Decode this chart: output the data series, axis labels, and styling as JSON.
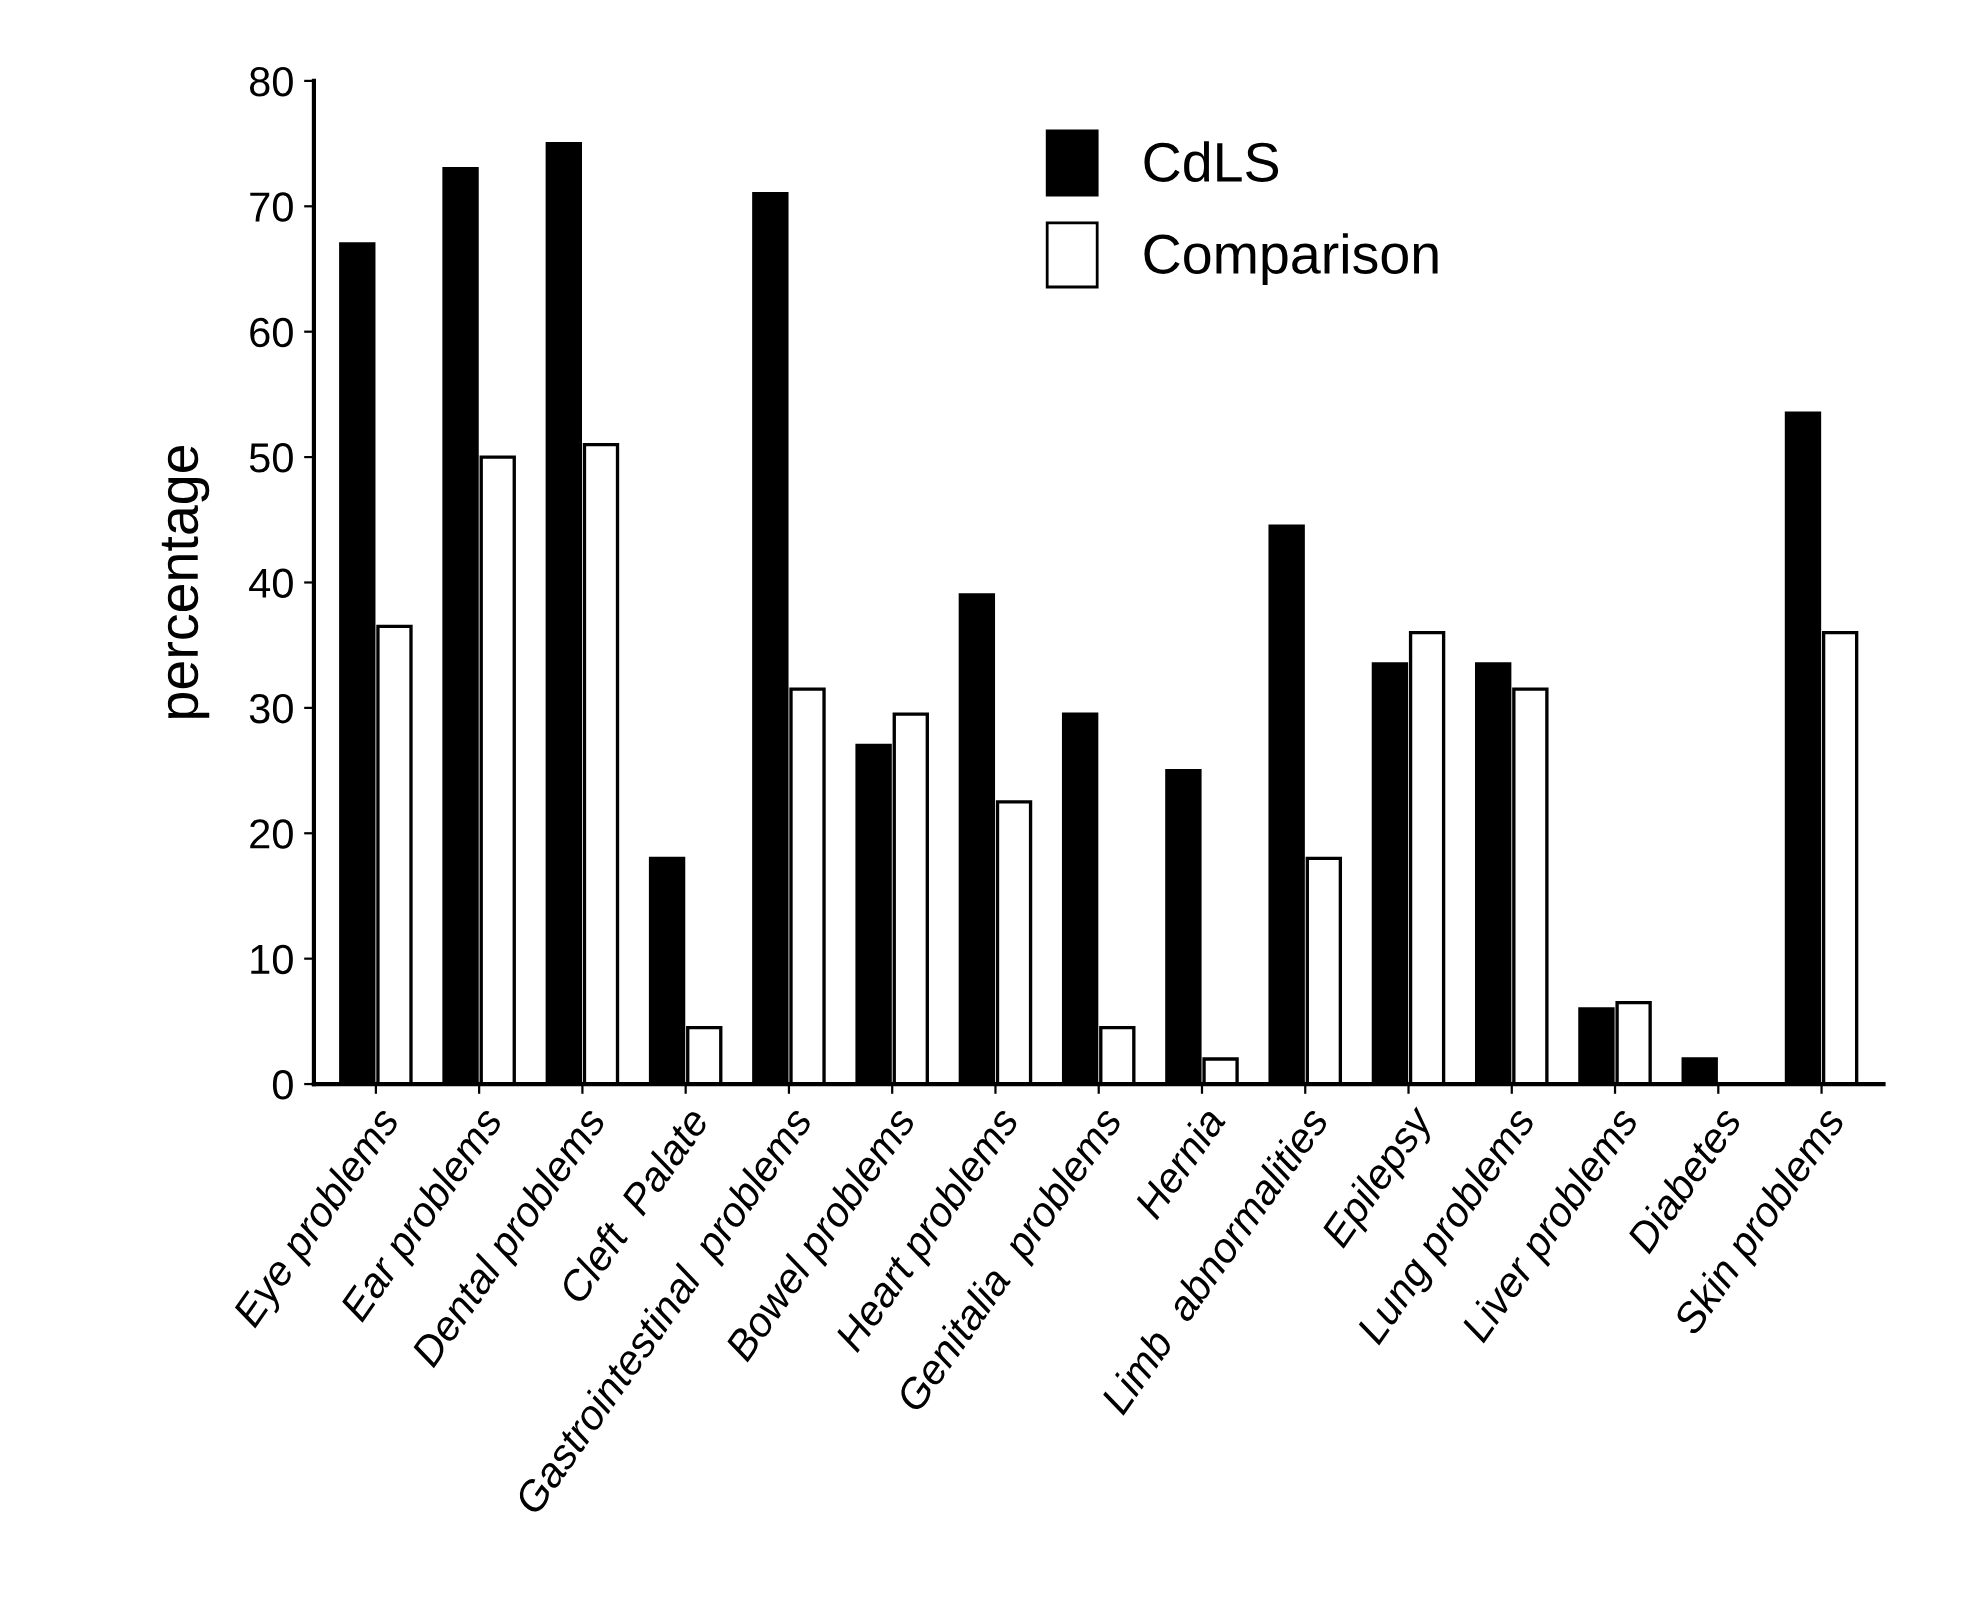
{
  "chart_data": {
    "type": "bar",
    "ylabel": "percentage",
    "categories": [
      "Eye problems",
      "Ear problems",
      "Dental problems",
      "Cleft  Palate",
      "Gastrointestinal  problems",
      "Bowel problems",
      "Heart problems",
      "Genitalia  problems",
      "Hernia",
      "Limb  abnormalities",
      "Epilepsy",
      "Lung problems",
      "Liver problems",
      "Diabetes",
      "Skin problems"
    ],
    "series": [
      {
        "name": "CdLS",
        "color": "#000000",
        "values": [
          67,
          73,
          75,
          18,
          71,
          27,
          39,
          29.5,
          25,
          44.5,
          33.5,
          33.5,
          6,
          2,
          53.5
        ]
      },
      {
        "name": "Comparison",
        "color": "#ffffff",
        "values": [
          36.5,
          50,
          51,
          4.5,
          31.5,
          29.5,
          22.5,
          4.5,
          2,
          18,
          36,
          31.5,
          6.5,
          null,
          36
        ]
      }
    ],
    "ylim": [
      0,
      80
    ],
    "yticks": [
      0,
      10,
      20,
      30,
      40,
      50,
      60,
      70,
      80
    ],
    "grid": false,
    "legend": "top right"
  }
}
